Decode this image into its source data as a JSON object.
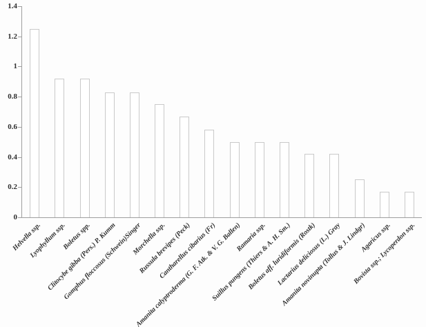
{
  "chart_data": {
    "type": "bar",
    "title": "",
    "xlabel": "",
    "ylabel": "",
    "categories": [
      "Helvella ssp.",
      "Lyophyllum ssp.",
      "Boletus spp.",
      "Clitocybe gibba (Pers.) P. Kumm",
      "Gomphus floccosus (Schwein)Singer",
      "Morchella ssp.",
      "Russula brevipes (Peck)",
      "Cantharellus cibarius (Fr)",
      "Amanita calyptroderma (G. F. Atk. & V. G. Ballen)",
      "Ramaria ssp.",
      "Suillus pungens (Thiers & A. H. Sm.)",
      "Boletus aff. luridiformis (Rostk)",
      "Lactarius deliciosus (L.) Gray",
      "Amanita novinupta (Tollus & J. Lindgr)",
      "Agaricus ssp.",
      "Bovista ssp.; Lycoperdon ssp."
    ],
    "values": [
      1.25,
      0.92,
      0.92,
      0.83,
      0.83,
      0.75,
      0.67,
      0.58,
      0.5,
      0.5,
      0.5,
      0.42,
      0.42,
      0.25,
      0.17,
      0.17
    ],
    "ylim": [
      0,
      1.4
    ],
    "yticks": [
      0,
      0.2,
      0.4,
      0.6,
      0.8,
      1,
      1.2,
      1.4
    ],
    "ytick_labels": [
      "0",
      "0.2",
      "0.4",
      "0.6",
      "0.8",
      "1",
      "1.2",
      "1.4"
    ],
    "grid": false,
    "legend": false,
    "x_label_rotation_deg": 45,
    "bar_fill": "#ffffff",
    "bar_stroke": "#c9c9c9",
    "axis_color": "#9e9e9e",
    "text_color": "#2f2f2f"
  }
}
